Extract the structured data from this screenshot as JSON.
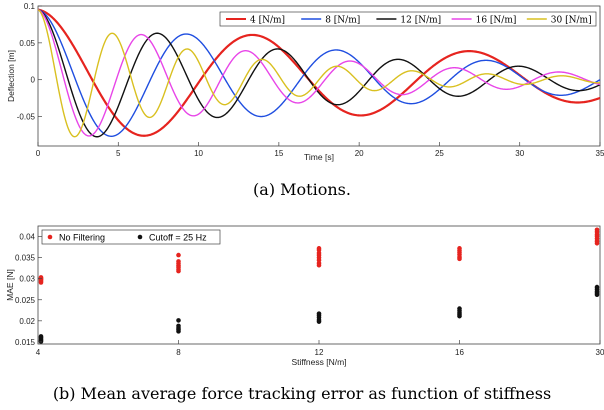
{
  "chart_data": [
    {
      "type": "line",
      "xlabel": "Time [s]",
      "ylabel": "Deflection [m]",
      "xlim": [
        0,
        35
      ],
      "ylim": [
        -0.09,
        0.1
      ],
      "xticks": [
        "0",
        "5",
        "10",
        "15",
        "20",
        "25",
        "30",
        "35"
      ],
      "yticks": [
        "0.1",
        "0.05",
        "0",
        "-0.05"
      ],
      "legend_position": "top-right",
      "series": [
        {
          "name": "4 [N/m]",
          "color": "#e6241f",
          "amplitude": 0.095,
          "omega": 0.4654,
          "decay": 0.0333
        },
        {
          "name": "8 [N/m]",
          "color": "#1f4ee0",
          "amplitude": 0.095,
          "omega": 0.6732,
          "decay": 0.046
        },
        {
          "name": "12 [N/m]",
          "color": "#111111",
          "amplitude": 0.095,
          "omega": 0.8378,
          "decay": 0.055
        },
        {
          "name": "16 [N/m]",
          "color": "#e845e8",
          "amplitude": 0.095,
          "omega": 0.9666,
          "decay": 0.068
        },
        {
          "name": "30 [N/m]",
          "color": "#d9c020",
          "amplitude": 0.095,
          "omega": 1.3464,
          "decay": 0.0885
        }
      ]
    },
    {
      "type": "scatter",
      "xlabel": "Stiffness [N/m]",
      "ylabel": "MAE [N]",
      "categories": [
        "4",
        "8",
        "12",
        "16",
        "30"
      ],
      "ylim": [
        0.0145,
        0.0425
      ],
      "yticks": [
        "0.04",
        "0.035",
        "0.03",
        "0.025",
        "0.02",
        "0.015"
      ],
      "legend_position": "top-left",
      "series": [
        {
          "name": "No Filtering",
          "color": "#e6241f",
          "values": [
            [
              0.0291,
              0.0294,
              0.0297,
              0.0299,
              0.0301,
              0.0303
            ],
            [
              0.0318,
              0.0322,
              0.0327,
              0.0331,
              0.0336,
              0.0341,
              0.0356
            ],
            [
              0.0332,
              0.0337,
              0.0344,
              0.035,
              0.0356,
              0.0361,
              0.0368,
              0.0372
            ],
            [
              0.0347,
              0.0351,
              0.0357,
              0.0362,
              0.0367,
              0.0372
            ],
            [
              0.0384,
              0.0389,
              0.0395,
              0.0401,
              0.0405,
              0.0411,
              0.0416
            ]
          ]
        },
        {
          "name": "Cutoff = 25 Hz",
          "color": "#111111",
          "values": [
            [
              0.0151,
              0.0154,
              0.0157,
              0.016,
              0.0163
            ],
            [
              0.0175,
              0.0179,
              0.0183,
              0.0188,
              0.0201
            ],
            [
              0.0198,
              0.0202,
              0.0208,
              0.0213,
              0.0217
            ],
            [
              0.0211,
              0.0215,
              0.0219,
              0.0224,
              0.0229
            ],
            [
              0.0262,
              0.0266,
              0.027,
              0.0275,
              0.028
            ]
          ]
        }
      ]
    }
  ],
  "captions": {
    "a": "(a)  Motions.",
    "b": "(b) Mean average force tracking error as function of stiffness"
  }
}
